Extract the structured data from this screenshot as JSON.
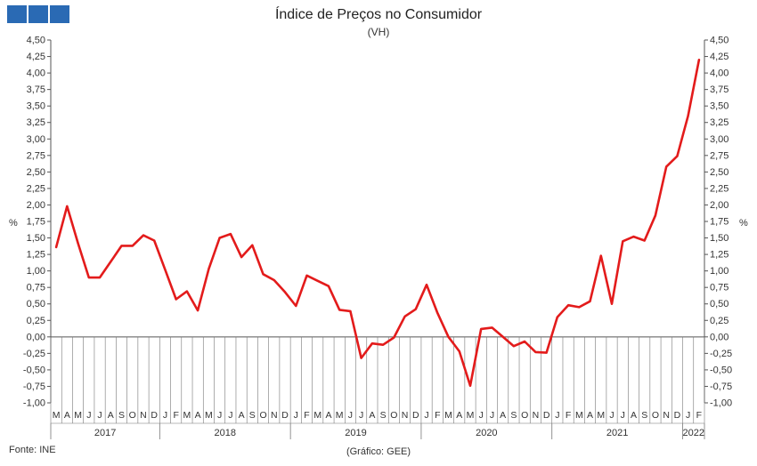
{
  "header": {
    "title": "Índice de Preços no Consumidor",
    "subtitle": "(VH)",
    "logo_color": "#2a6ab4"
  },
  "footer": {
    "source": "Fonte: INE",
    "credit": "(Gráfico: GEE)"
  },
  "chart_data": {
    "type": "line",
    "title": "Índice de Preços no Consumidor",
    "subtitle": "(VH)",
    "ylabel_left": "%",
    "ylabel_right": "%",
    "ylim": [
      -1.0,
      4.5
    ],
    "yticks": [
      "4,50",
      "4,25",
      "4,00",
      "3,75",
      "3,50",
      "3,25",
      "3,00",
      "2,75",
      "2,50",
      "2,25",
      "2,00",
      "1,75",
      "1,50",
      "1,25",
      "1,00",
      "0,75",
      "0,50",
      "0,25",
      "0,00",
      "-0,25",
      "-0,50",
      "-0,75",
      "-1,00"
    ],
    "ytick_values": [
      4.5,
      4.25,
      4.0,
      3.75,
      3.5,
      3.25,
      3.0,
      2.75,
      2.5,
      2.25,
      2.0,
      1.75,
      1.5,
      1.25,
      1.0,
      0.75,
      0.5,
      0.25,
      0.0,
      -0.25,
      -0.5,
      -0.75,
      -1.0
    ],
    "grid": false,
    "line_color": "#e31b1b",
    "month_labels": [
      "M",
      "A",
      "M",
      "J",
      "J",
      "A",
      "S",
      "O",
      "N",
      "D",
      "J",
      "F",
      "M",
      "A",
      "M",
      "J",
      "J",
      "A",
      "S",
      "O",
      "N",
      "D",
      "J",
      "F",
      "M",
      "A",
      "M",
      "J",
      "J",
      "A",
      "S",
      "O",
      "N",
      "D",
      "J",
      "F",
      "M",
      "A",
      "M",
      "J",
      "J",
      "A",
      "S",
      "O",
      "N",
      "D",
      "J",
      "F",
      "M",
      "A",
      "M",
      "J",
      "J",
      "A",
      "S",
      "O",
      "N",
      "D",
      "J",
      "F"
    ],
    "years": [
      {
        "label": "2017",
        "start": 0,
        "count": 10
      },
      {
        "label": "2018",
        "start": 10,
        "count": 12
      },
      {
        "label": "2019",
        "start": 22,
        "count": 12
      },
      {
        "label": "2020",
        "start": 34,
        "count": 12
      },
      {
        "label": "2021",
        "start": 46,
        "count": 12
      },
      {
        "label": "2022",
        "start": 58,
        "count": 2
      }
    ],
    "series": [
      {
        "values": [
          1.36,
          1.98,
          1.42,
          0.9,
          0.9,
          1.14,
          1.38,
          1.38,
          1.54,
          1.46,
          1.02,
          0.57,
          0.69,
          0.4,
          1.03,
          1.5,
          1.56,
          1.21,
          1.39,
          0.95,
          0.86,
          0.68,
          0.47,
          0.93,
          0.85,
          0.77,
          0.41,
          0.39,
          -0.32,
          -0.1,
          -0.12,
          -0.01,
          0.31,
          0.42,
          0.79,
          0.36,
          0.0,
          -0.22,
          -0.74,
          0.12,
          0.14,
          0.0,
          -0.14,
          -0.07,
          -0.23,
          -0.24,
          0.3,
          0.48,
          0.45,
          0.54,
          1.23,
          0.5,
          1.45,
          1.52,
          1.46,
          1.84,
          2.58,
          2.74,
          3.35,
          4.2
        ]
      }
    ]
  }
}
